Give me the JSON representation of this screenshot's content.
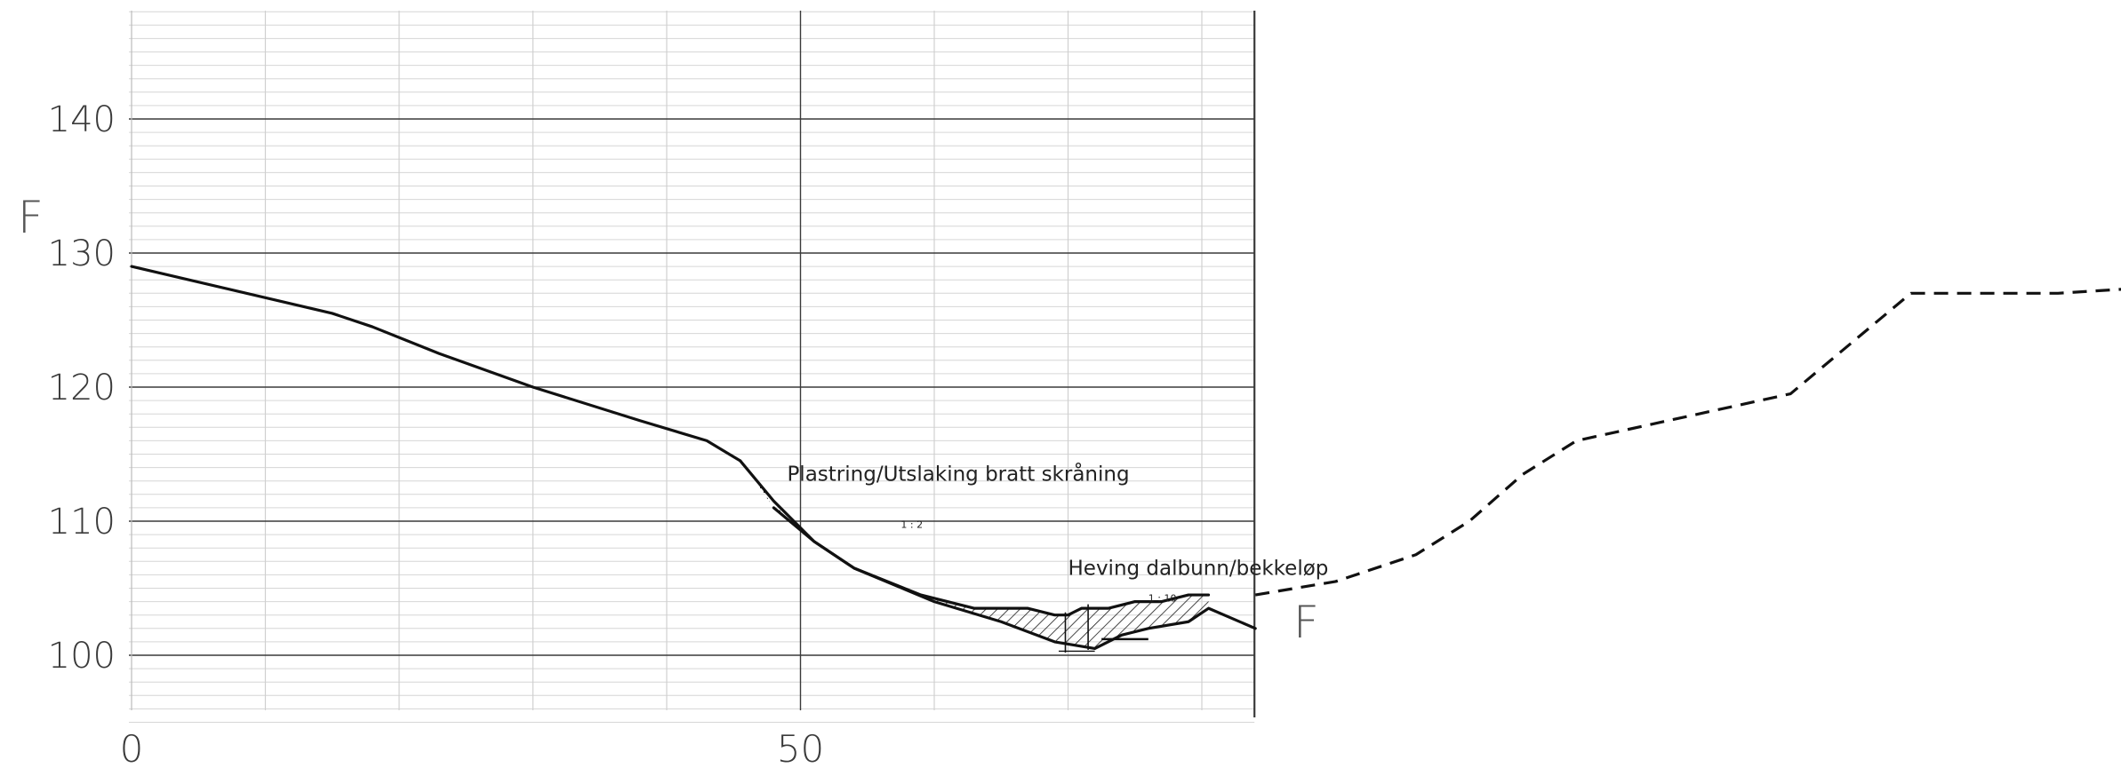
{
  "chart_data": {
    "type": "line",
    "title": "",
    "xlabel": "",
    "ylabel": "",
    "xlim": [
      0,
      84
    ],
    "ylim": [
      95,
      148
    ],
    "x_ticks": [
      {
        "value": 0,
        "label": "0"
      },
      {
        "value": 50,
        "label": "50"
      }
    ],
    "y_ticks": [
      {
        "value": 100,
        "label": "100"
      },
      {
        "value": 110,
        "label": "110"
      },
      {
        "value": 120,
        "label": "120"
      },
      {
        "value": 130,
        "label": "130"
      },
      {
        "value": 140,
        "label": "140"
      }
    ],
    "grid": true,
    "section_marker_left": "F",
    "section_marker_right": "F",
    "series": [
      {
        "line_style": "solid",
        "x": [
          0,
          15,
          18,
          23,
          30,
          38,
          43,
          45.5
        ],
        "y": [
          129,
          125.5,
          124.5,
          122.5,
          120,
          117.5,
          116,
          114.5
        ]
      },
      {
        "line_style": "solid",
        "x": [
          45.5,
          48,
          51,
          54,
          59,
          63,
          67,
          69,
          70,
          71,
          73,
          75,
          77,
          79,
          80.5
        ],
        "y": [
          114.5,
          111.5,
          108.5,
          106.5,
          104.5,
          103.5,
          103.5,
          103,
          103,
          103.5,
          103.5,
          104,
          104,
          104.5,
          104.5
        ]
      },
      {
        "line_style": "solid",
        "x": [
          48,
          51,
          54,
          60,
          65,
          69,
          72,
          74,
          76,
          79,
          80.5,
          84
        ],
        "y": [
          111,
          108.5,
          106.5,
          104,
          102.5,
          101,
          100.5,
          101.5,
          102,
          102.5,
          103.5,
          102
        ]
      },
      {
        "line_style": "dashed",
        "x": [
          84,
          90,
          96,
          100,
          104,
          108,
          124,
          133,
          144,
          152,
          166
        ],
        "y": [
          104.5,
          105.5,
          107.5,
          110,
          113.5,
          116,
          119.5,
          127,
          127,
          127.5,
          127.5
        ]
      }
    ],
    "annotations": [
      {
        "text": "Plastring/Utslaking bratt skråning",
        "x": 49,
        "y": 113
      },
      {
        "text": "Heving dalbunn/bekkeløp",
        "x": 70,
        "y": 106
      },
      {
        "text": "1 : 2",
        "x": 57.5,
        "y": 109.5
      },
      {
        "text": "1 : 10",
        "x": 76,
        "y": 104
      }
    ]
  }
}
